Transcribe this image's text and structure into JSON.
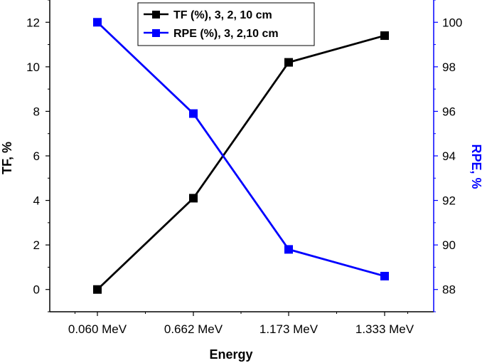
{
  "chart_data": {
    "type": "line",
    "categories": [
      "0.060 MeV",
      "0.662 MeV",
      "1.173 MeV",
      "1.333 MeV"
    ],
    "xlabel": "Energy",
    "series": [
      {
        "name": "TF (%), 3, 2, 10 cm",
        "axis": "left",
        "color": "#000000",
        "values": [
          0.0,
          4.1,
          10.2,
          11.4
        ]
      },
      {
        "name": "RPE (%), 3, 2,10 cm",
        "axis": "right",
        "color": "#0000ff",
        "values": [
          100.0,
          95.9,
          89.8,
          88.6
        ]
      }
    ],
    "left_axis": {
      "label": "TF, %",
      "color": "#000000",
      "ylim": [
        -1,
        13
      ],
      "ticks": [
        0,
        2,
        4,
        6,
        8,
        10,
        12
      ]
    },
    "right_axis": {
      "label": "RPE, %",
      "color": "#0000ff",
      "ylim": [
        87,
        101
      ],
      "ticks": [
        88,
        90,
        92,
        94,
        96,
        98,
        100
      ]
    },
    "legend_position": "top-center",
    "grid": false
  }
}
